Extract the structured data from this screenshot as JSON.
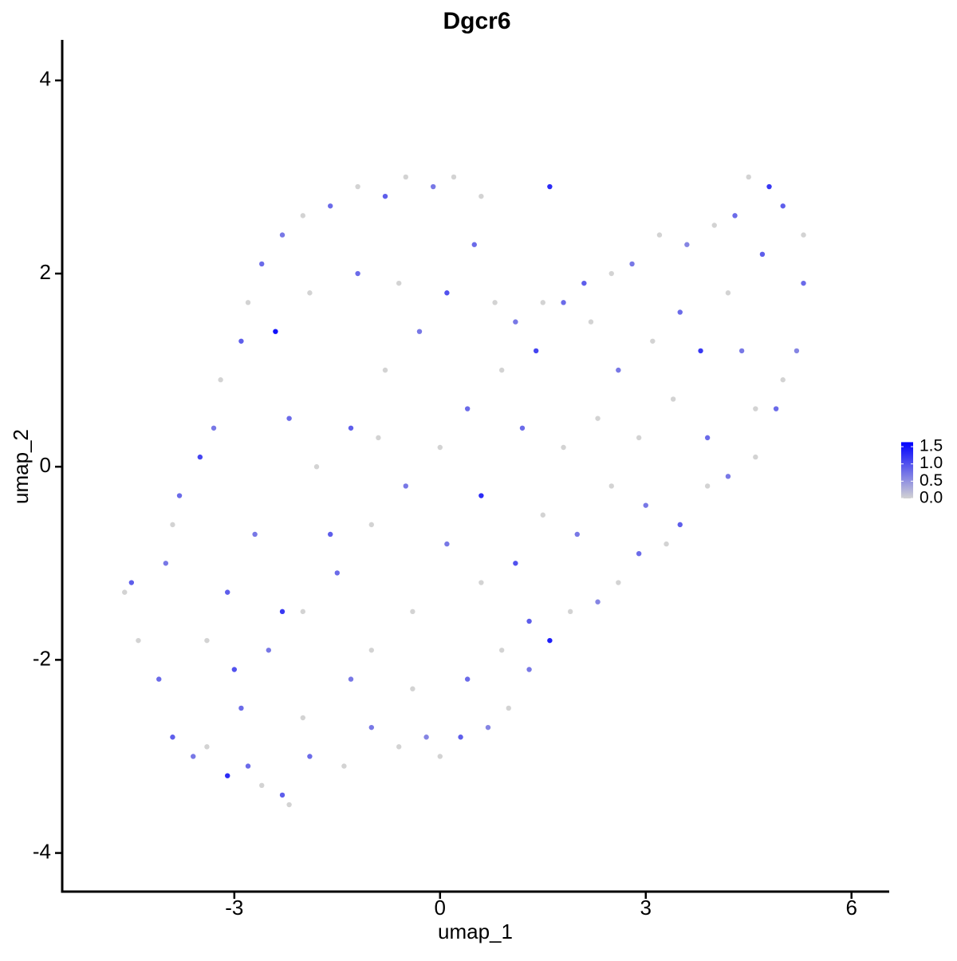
{
  "chart_data": {
    "type": "scatter",
    "title": "Dgcr6",
    "xlabel": "umap_1",
    "ylabel": "umap_2",
    "xlim": [
      -5.51,
      6.55
    ],
    "ylim": [
      -4.4,
      4.42
    ],
    "xticks": [
      -3,
      0,
      3,
      6
    ],
    "yticks": [
      -4,
      -2,
      0,
      2,
      4
    ],
    "color_scale": {
      "low": "#d3d3d3",
      "high": "#0000ff",
      "limits": [
        0,
        1.63
      ],
      "ticks": [
        {
          "value": 0,
          "label": "0.0"
        },
        {
          "value": 0.5,
          "label": "0.5"
        },
        {
          "value": 1,
          "label": "1.0"
        },
        {
          "value": 1.5,
          "label": "1.5"
        }
      ]
    },
    "x": [
      -4.6,
      -4.5,
      -4.4,
      -4.1,
      -3.9,
      -3.6,
      -3.4,
      -3.1,
      -2.8,
      -2.6,
      -2.3,
      -2.2,
      -1.9,
      -1.4,
      -1.0,
      -0.6,
      -0.2,
      0.0,
      0.3,
      0.7,
      1.0,
      1.3,
      1.6,
      1.9,
      2.3,
      2.6,
      2.9,
      3.3,
      3.5,
      3.9,
      4.2,
      4.6,
      4.9,
      5.0,
      5.2,
      5.3,
      5.3,
      5.0,
      4.8,
      4.5,
      4.3,
      4.0,
      3.6,
      3.2,
      2.8,
      2.5,
      2.1,
      1.8,
      1.5,
      1.1,
      0.8,
      0.5,
      0.6,
      1.6,
      0.2,
      -0.1,
      -0.5,
      -0.8,
      -1.2,
      -1.6,
      -2.0,
      -2.3,
      -2.6,
      -2.8,
      -2.9,
      -3.2,
      -3.3,
      -3.5,
      -3.8,
      -3.9,
      -4.0,
      -2.4,
      -3.0,
      -2.5,
      -2.0,
      -1.5,
      -1.0,
      -0.5,
      0.0,
      0.4,
      0.9,
      -2.2,
      -1.8,
      -1.3,
      -0.8,
      -0.3,
      -1.9,
      -1.2,
      -0.6,
      0.1,
      -2.7,
      -3.1,
      -3.4,
      -2.9,
      -2.0,
      -1.3,
      -0.4,
      0.4,
      0.9,
      1.3,
      0.6,
      0.1,
      -0.4,
      1.1,
      1.5,
      2.0,
      1.8,
      1.2,
      2.3,
      2.6,
      3.1,
      3.5,
      3.8,
      4.2,
      4.4,
      4.6,
      3.9,
      3.4,
      2.9,
      3.0,
      2.5,
      4.7,
      0.6,
      -1.6,
      -2.3,
      -1.0,
      2.2,
      1.4,
      -0.9
    ],
    "y": [
      -1.3,
      -1.2,
      -1.8,
      -2.2,
      -2.8,
      -3.0,
      -2.9,
      -3.2,
      -3.1,
      -3.3,
      -3.4,
      -3.5,
      -3.0,
      -3.1,
      -2.7,
      -2.9,
      -2.8,
      -3.0,
      -2.8,
      -2.7,
      -2.5,
      -2.1,
      -1.8,
      -1.5,
      -1.4,
      -1.2,
      -0.9,
      -0.8,
      -0.6,
      -0.2,
      -0.1,
      0.1,
      0.6,
      0.9,
      1.2,
      1.9,
      2.4,
      2.7,
      2.9,
      3.0,
      2.6,
      2.5,
      2.3,
      2.4,
      2.1,
      2.0,
      1.9,
      1.7,
      1.7,
      1.5,
      1.7,
      2.3,
      2.8,
      2.9,
      3.0,
      2.9,
      3.0,
      2.8,
      2.9,
      2.7,
      2.6,
      2.4,
      2.1,
      1.7,
      1.3,
      0.9,
      0.4,
      0.1,
      -0.3,
      -0.6,
      -1.0,
      1.4,
      -2.1,
      -1.9,
      -1.5,
      -1.1,
      -0.6,
      -0.2,
      0.2,
      0.6,
      1.0,
      0.5,
      0.0,
      0.4,
      1.0,
      1.4,
      1.8,
      2.0,
      1.9,
      1.8,
      -0.7,
      -1.3,
      -1.8,
      -2.5,
      -2.6,
      -2.2,
      -2.3,
      -2.2,
      -1.9,
      -1.6,
      -1.2,
      -0.8,
      -1.5,
      -1.0,
      -0.5,
      -0.7,
      0.2,
      0.4,
      0.5,
      1.0,
      1.3,
      1.6,
      1.2,
      1.8,
      1.2,
      0.6,
      0.3,
      0.7,
      0.3,
      -0.4,
      -0.2,
      2.2,
      -0.3,
      -0.7,
      -1.5,
      -1.9,
      1.5,
      1.2,
      0.3
    ],
    "values": [
      0,
      0.9,
      0,
      0.8,
      0.9,
      0.7,
      0,
      1.3,
      0.8,
      0,
      0.9,
      0,
      0.8,
      0,
      0.7,
      0,
      0.6,
      0,
      0.9,
      0.6,
      0,
      0.7,
      1.4,
      0,
      0.6,
      0,
      0.8,
      0,
      0.9,
      0,
      0.7,
      0,
      0.8,
      0,
      0.6,
      0.8,
      0,
      0.9,
      1.2,
      0,
      0.8,
      0,
      0.6,
      0,
      0.7,
      0,
      0.9,
      0.8,
      0,
      0.7,
      0,
      0.8,
      0,
      1.3,
      0,
      0.7,
      0,
      0.9,
      0,
      0.8,
      0,
      0.7,
      0.8,
      0,
      0.9,
      0,
      0.7,
      1.1,
      0.8,
      0,
      0.7,
      1.5,
      1.0,
      0.7,
      0,
      0.8,
      0,
      0.7,
      0,
      0.8,
      0,
      0.8,
      0,
      0.9,
      0,
      0.7,
      0,
      0.8,
      0,
      1.0,
      0.7,
      0.9,
      0,
      0.8,
      0,
      0.7,
      0,
      0.8,
      0,
      0.9,
      0,
      0.7,
      0,
      1.0,
      0,
      0.7,
      0,
      0.8,
      0,
      0.7,
      0,
      0.8,
      1.2,
      0,
      0.7,
      0,
      0.8,
      0,
      0,
      0.7,
      0,
      0.9,
      1.3,
      0.9,
      1.2,
      0,
      0,
      1.1,
      0
    ]
  }
}
